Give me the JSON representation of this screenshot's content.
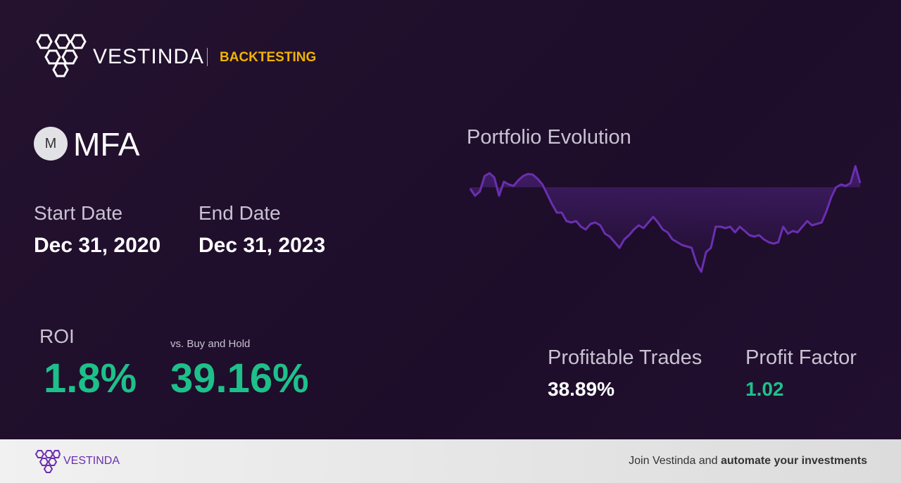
{
  "header": {
    "brand": "VESTINDA",
    "section": "BACKTESTING"
  },
  "ticker": {
    "icon": "M",
    "symbol": "MFA"
  },
  "dates": {
    "start_label": "Start Date",
    "start": "Dec 31, 2020",
    "end_label": "End Date",
    "end": "Dec 31, 2023"
  },
  "metrics": {
    "roi_label": "ROI",
    "roi": "1.8%",
    "bh_label": "vs. Buy and Hold",
    "bh": "39.16%",
    "trades_label": "Profitable Trades",
    "trades": "38.89%",
    "pf_label": "Profit Factor",
    "pf": "1.02"
  },
  "chart_data": {
    "type": "line",
    "title": "Portfolio Evolution",
    "color": "#6a2fb0",
    "values": [
      -2,
      -12,
      -6,
      16,
      20,
      14,
      -12,
      8,
      4,
      2,
      10,
      16,
      19,
      18,
      12,
      4,
      -10,
      -24,
      -36,
      -36,
      -48,
      -50,
      -48,
      -56,
      -60,
      -52,
      -50,
      -54,
      -66,
      -70,
      -78,
      -86,
      -74,
      -68,
      -60,
      -54,
      -58,
      -50,
      -42,
      -50,
      -60,
      -64,
      -74,
      -78,
      -82,
      -84,
      -86,
      -108,
      -120,
      -92,
      -86,
      -56,
      -56,
      -58,
      -56,
      -64,
      -56,
      -62,
      -68,
      -70,
      -68,
      -74,
      -78,
      -80,
      -78,
      -56,
      -66,
      -62,
      -64,
      -56,
      -48,
      -54,
      -52,
      -50,
      -34,
      -14,
      0,
      4,
      2,
      6,
      30,
      6
    ]
  },
  "footer": {
    "brand": "VESTINDA",
    "cta_plain": "Join Vestinda and",
    "cta_bold": "automate your investments"
  }
}
